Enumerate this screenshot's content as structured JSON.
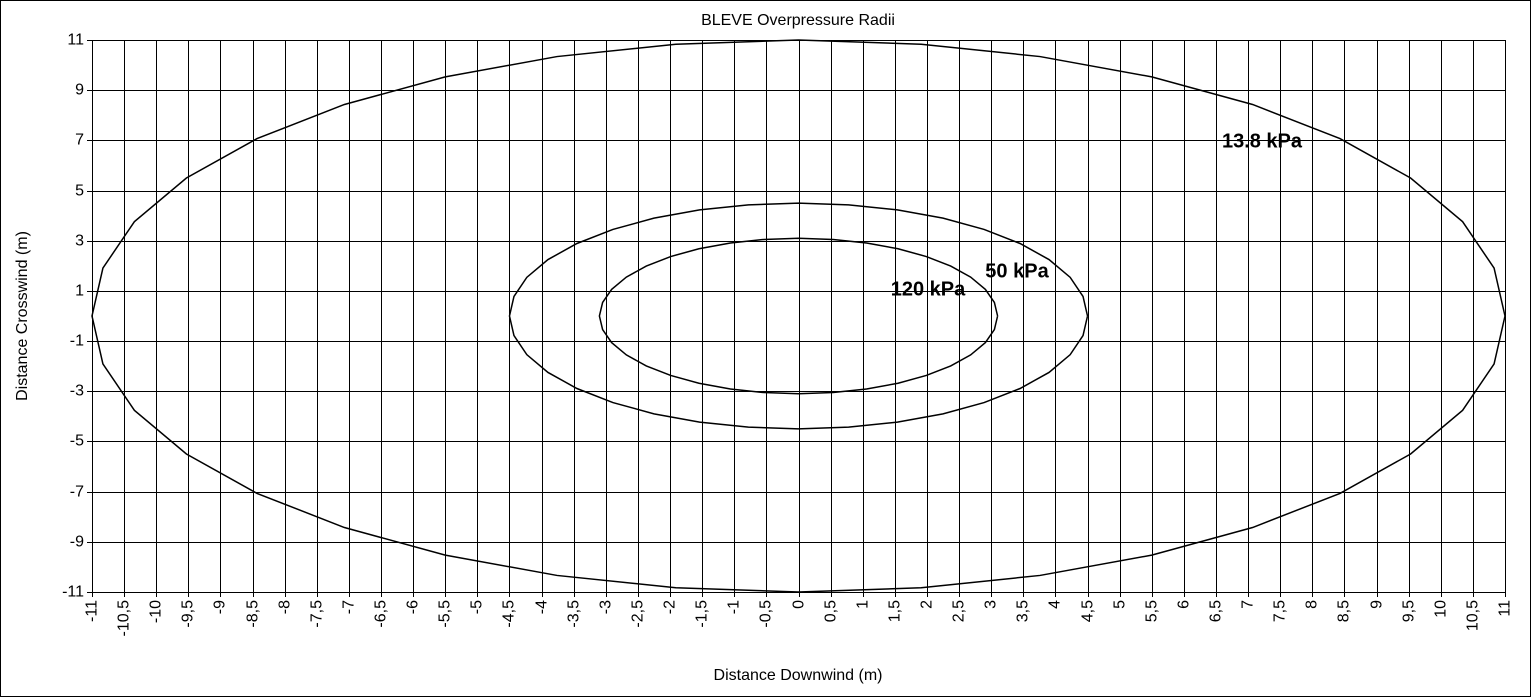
{
  "chart_data": {
    "type": "line",
    "title": "BLEVE Overpressure Radii",
    "x_label": "Distance Downwind (m)",
    "y_label": "Distance Crosswind (m)",
    "xlim": [
      -11,
      11
    ],
    "ylim": [
      -11,
      11
    ],
    "grid": true,
    "xticks": [
      -11,
      {
        "value": -10.5,
        "label": "-10,5"
      },
      -10,
      {
        "value": -9.5,
        "label": "-9,5"
      },
      -9,
      {
        "value": -8.5,
        "label": "-8,5"
      },
      -8,
      {
        "value": -7.5,
        "label": "-7,5"
      },
      -7,
      {
        "value": -6.5,
        "label": "-6,5"
      },
      -6,
      {
        "value": -5.5,
        "label": "-5,5"
      },
      -5,
      {
        "value": -4.5,
        "label": "-4,5"
      },
      -4,
      {
        "value": -3.5,
        "label": "-3,5"
      },
      -3,
      {
        "value": -2.5,
        "label": "-2,5"
      },
      -2,
      {
        "value": -1.5,
        "label": "-1,5"
      },
      -1,
      {
        "value": -0.5,
        "label": "-0,5"
      },
      0,
      {
        "value": 0.5,
        "label": "0,5"
      },
      1,
      {
        "value": 1.5,
        "label": "1,5"
      },
      2,
      {
        "value": 2.5,
        "label": "2,5"
      },
      3,
      {
        "value": 3.5,
        "label": "3,5"
      },
      4,
      {
        "value": 4.5,
        "label": "4,5"
      },
      5,
      {
        "value": 5.5,
        "label": "5,5"
      },
      6,
      {
        "value": 6.5,
        "label": "6,5"
      },
      7,
      {
        "value": 7.5,
        "label": "7,5"
      },
      8,
      {
        "value": 8.5,
        "label": "8,5"
      },
      9,
      {
        "value": 9.5,
        "label": "9,5"
      },
      10,
      {
        "value": 10.5,
        "label": "10,5"
      },
      11
    ],
    "yticks": [
      11,
      9,
      7,
      5,
      3,
      1,
      -1,
      -3,
      -5,
      -7,
      -9,
      -11
    ],
    "series": [
      {
        "name": "13.8 kPa",
        "color": "#000000",
        "x": [
          11,
          10.83,
          10.34,
          9.53,
          8.43,
          7.07,
          5.5,
          3.76,
          1.91,
          0,
          -1.91,
          -3.76,
          -5.5,
          -7.07,
          -8.43,
          -9.53,
          -10.34,
          -10.83,
          -11,
          -10.83,
          -10.34,
          -9.53,
          -8.43,
          -7.07,
          -5.5,
          -3.76,
          -1.91,
          0,
          1.91,
          3.76,
          5.5,
          7.07,
          8.43,
          9.53,
          10.34,
          10.83,
          11
        ],
        "values": [
          0,
          1.91,
          3.76,
          5.5,
          7.07,
          8.43,
          9.53,
          10.34,
          10.83,
          11,
          10.83,
          10.34,
          9.53,
          8.43,
          7.07,
          5.5,
          3.76,
          1.91,
          0,
          -1.91,
          -3.76,
          -5.5,
          -7.07,
          -8.43,
          -9.53,
          -10.34,
          -10.83,
          -11,
          -10.83,
          -10.34,
          -9.53,
          -8.43,
          -7.07,
          -5.5,
          -3.76,
          -1.91,
          0
        ]
      },
      {
        "name": "50 kPa",
        "color": "#000000",
        "x": [
          4.5,
          4.43,
          4.23,
          3.9,
          3.45,
          2.89,
          2.25,
          1.54,
          0.78,
          0,
          -0.78,
          -1.54,
          -2.25,
          -2.89,
          -3.45,
          -3.9,
          -4.23,
          -4.43,
          -4.5,
          -4.43,
          -4.23,
          -3.9,
          -3.45,
          -2.89,
          -2.25,
          -1.54,
          -0.78,
          0,
          0.78,
          1.54,
          2.25,
          2.89,
          3.45,
          3.9,
          4.23,
          4.43,
          4.5
        ],
        "values": [
          0,
          0.78,
          1.54,
          2.25,
          2.89,
          3.45,
          3.9,
          4.23,
          4.43,
          4.5,
          4.43,
          4.23,
          3.9,
          3.45,
          2.89,
          2.25,
          1.54,
          0.78,
          0,
          -0.78,
          -1.54,
          -2.25,
          -2.89,
          -3.45,
          -3.9,
          -4.23,
          -4.43,
          -4.5,
          -4.43,
          -4.23,
          -3.9,
          -3.45,
          -2.89,
          -2.25,
          -1.54,
          -0.78,
          0
        ]
      },
      {
        "name": "120 kPa",
        "color": "#000000",
        "x": [
          3.1,
          3.05,
          2.91,
          2.68,
          2.37,
          1.99,
          1.55,
          1.06,
          0.54,
          0,
          -0.54,
          -1.06,
          -1.55,
          -1.99,
          -2.37,
          -2.68,
          -2.91,
          -3.05,
          -3.1,
          -3.05,
          -2.91,
          -2.68,
          -2.37,
          -1.99,
          -1.55,
          -1.06,
          -0.54,
          0,
          0.54,
          1.06,
          1.55,
          1.99,
          2.37,
          2.68,
          2.91,
          3.05,
          3.1
        ],
        "values": [
          0,
          0.54,
          1.06,
          1.55,
          1.99,
          2.37,
          2.68,
          2.91,
          3.05,
          3.1,
          3.05,
          2.91,
          2.68,
          2.37,
          1.99,
          1.55,
          1.06,
          0.54,
          0,
          -0.54,
          -1.06,
          -1.55,
          -1.99,
          -2.37,
          -2.68,
          -2.91,
          -3.05,
          -3.1,
          -3.05,
          -2.91,
          -2.68,
          -2.37,
          -1.99,
          -1.55,
          -1.06,
          -0.54,
          0
        ]
      }
    ]
  }
}
